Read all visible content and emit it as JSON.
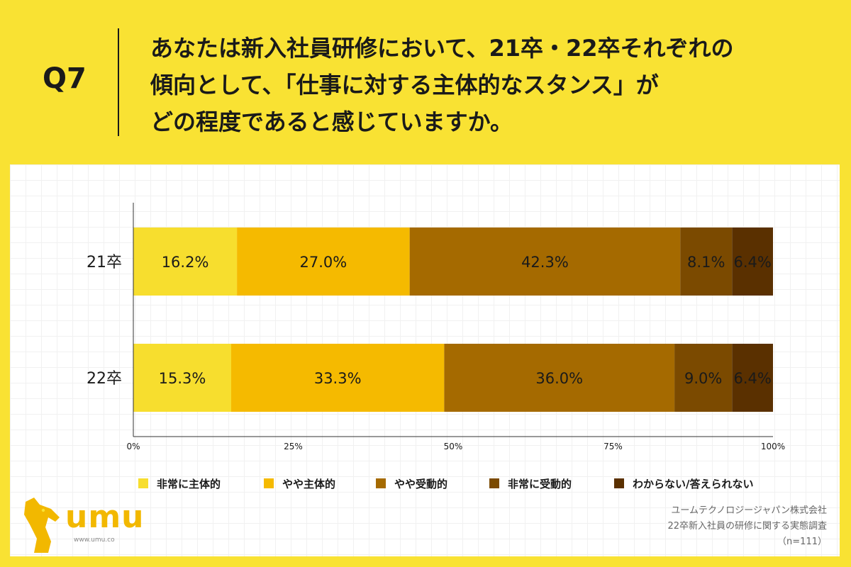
{
  "question": {
    "label": "Q7",
    "lines": [
      "あなたは新入社員研修において、21卒・22卒それぞれの",
      "傾向として、「仕事に対する主体的なスタンス」が",
      "どの程度であると感じていますか。"
    ]
  },
  "chart_data": {
    "type": "bar",
    "orientation": "horizontal",
    "stacked": true,
    "categories": [
      "21卒",
      "22卒"
    ],
    "series": [
      {
        "name": "非常に主体的",
        "values": [
          16.2,
          15.3
        ],
        "labels": [
          "16.2%",
          "15.3%"
        ],
        "color": "#F7DE2E"
      },
      {
        "name": "やや主体的",
        "values": [
          27.0,
          33.3
        ],
        "labels": [
          "27.0%",
          "33.3%"
        ],
        "color": "#F5BA00"
      },
      {
        "name": "やや受動的",
        "values": [
          42.3,
          36.0
        ],
        "labels": [
          "42.3%",
          "36.0%"
        ],
        "color": "#A56A00"
      },
      {
        "name": "非常に受動的",
        "values": [
          8.1,
          9.0
        ],
        "labels": [
          "8.1%",
          "9.0%"
        ],
        "color": "#7B4A00"
      },
      {
        "name": "わからない/答えられない",
        "values": [
          6.4,
          6.4
        ],
        "labels": [
          "6.4%",
          "6.4%"
        ],
        "color": "#5A3000"
      }
    ],
    "x_ticks": [
      "0%",
      "25%",
      "50%",
      "75%",
      "100%"
    ],
    "xlim": [
      0,
      100
    ],
    "legend_position": "bottom"
  },
  "footer": {
    "lines": [
      "ユームテクノロジージャパン株式会社",
      "22卒新入社員の研修に関する実態調査",
      "（n=111）"
    ]
  },
  "logo": {
    "text": "umu",
    "url": "www.umu.co"
  },
  "colors": {
    "background": "#F9E233",
    "axis": "#333333"
  }
}
